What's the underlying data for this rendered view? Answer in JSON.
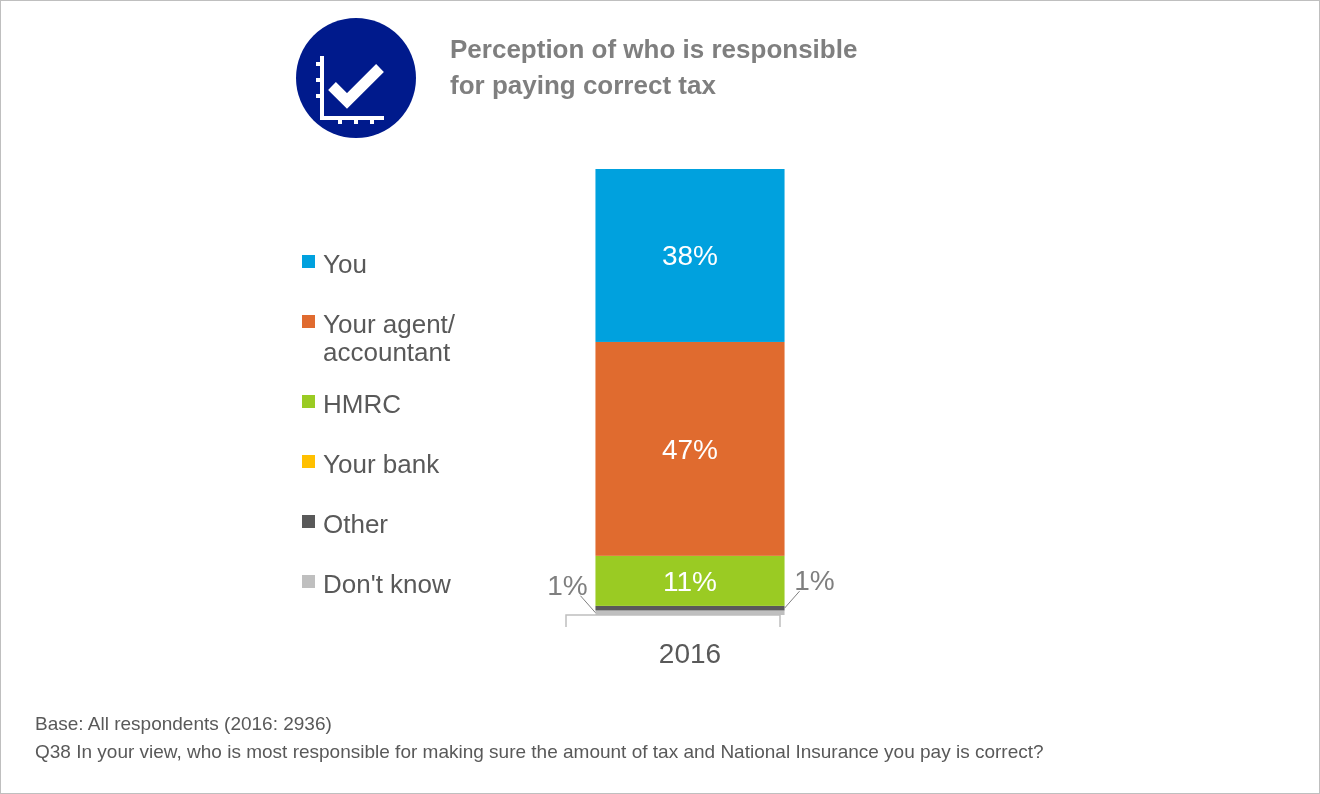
{
  "chart_data": {
    "type": "bar",
    "stacked": true,
    "title": "Perception of who is responsible for paying correct tax",
    "categories": [
      "2016"
    ],
    "legend": "left",
    "series": [
      {
        "name": "Don't know",
        "color": "#bfbfbf",
        "values": [
          1
        ],
        "value_labels": [
          "1%"
        ]
      },
      {
        "name": "Other",
        "color": "#595959",
        "values": [
          1
        ],
        "value_labels": [
          "1%"
        ]
      },
      {
        "name": "Your bank",
        "color": "#ffc000",
        "values": [
          0
        ],
        "value_labels": [
          null
        ]
      },
      {
        "name": "HMRC",
        "color": "#9acb23",
        "values": [
          11
        ],
        "value_labels": [
          "11%"
        ]
      },
      {
        "name": "Your agent/ accountant",
        "color": "#e06b2f",
        "values": [
          47
        ],
        "value_labels": [
          "47%"
        ]
      },
      {
        "name": "You",
        "color": "#00a1de",
        "values": [
          38
        ],
        "value_labels": [
          "38%"
        ]
      }
    ],
    "annotations": [
      "Base: All respondents (2016: 2936)",
      "Q38 In your view, who is most responsible for making sure the amount of tax and National Insurance  you pay is correct?"
    ]
  }
}
